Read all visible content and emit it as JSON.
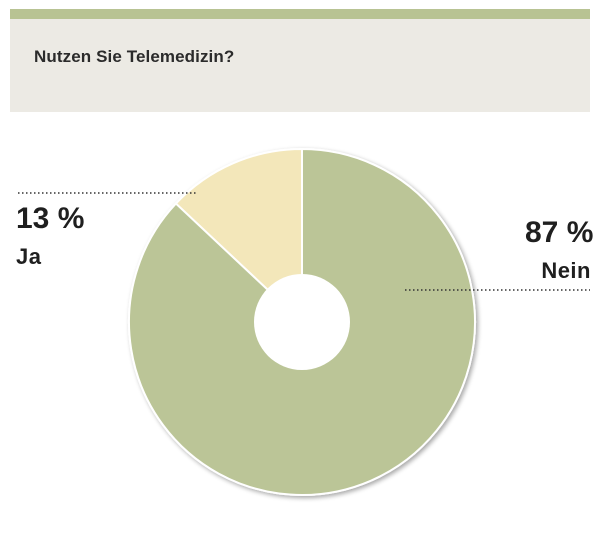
{
  "chart_data": {
    "type": "pie",
    "title": "Nutzen Sie Telemedizin?",
    "categories": [
      "Ja",
      "Nein"
    ],
    "values": [
      13,
      87
    ],
    "value_labels": [
      "13 %",
      "87 %"
    ],
    "donut": true,
    "legend": "none",
    "colors": {
      "Ja": "#f3e7ba",
      "Nein": "#bbc597"
    }
  },
  "header": {
    "accent_color": "#b8c393",
    "background_color": "#eceae4"
  }
}
